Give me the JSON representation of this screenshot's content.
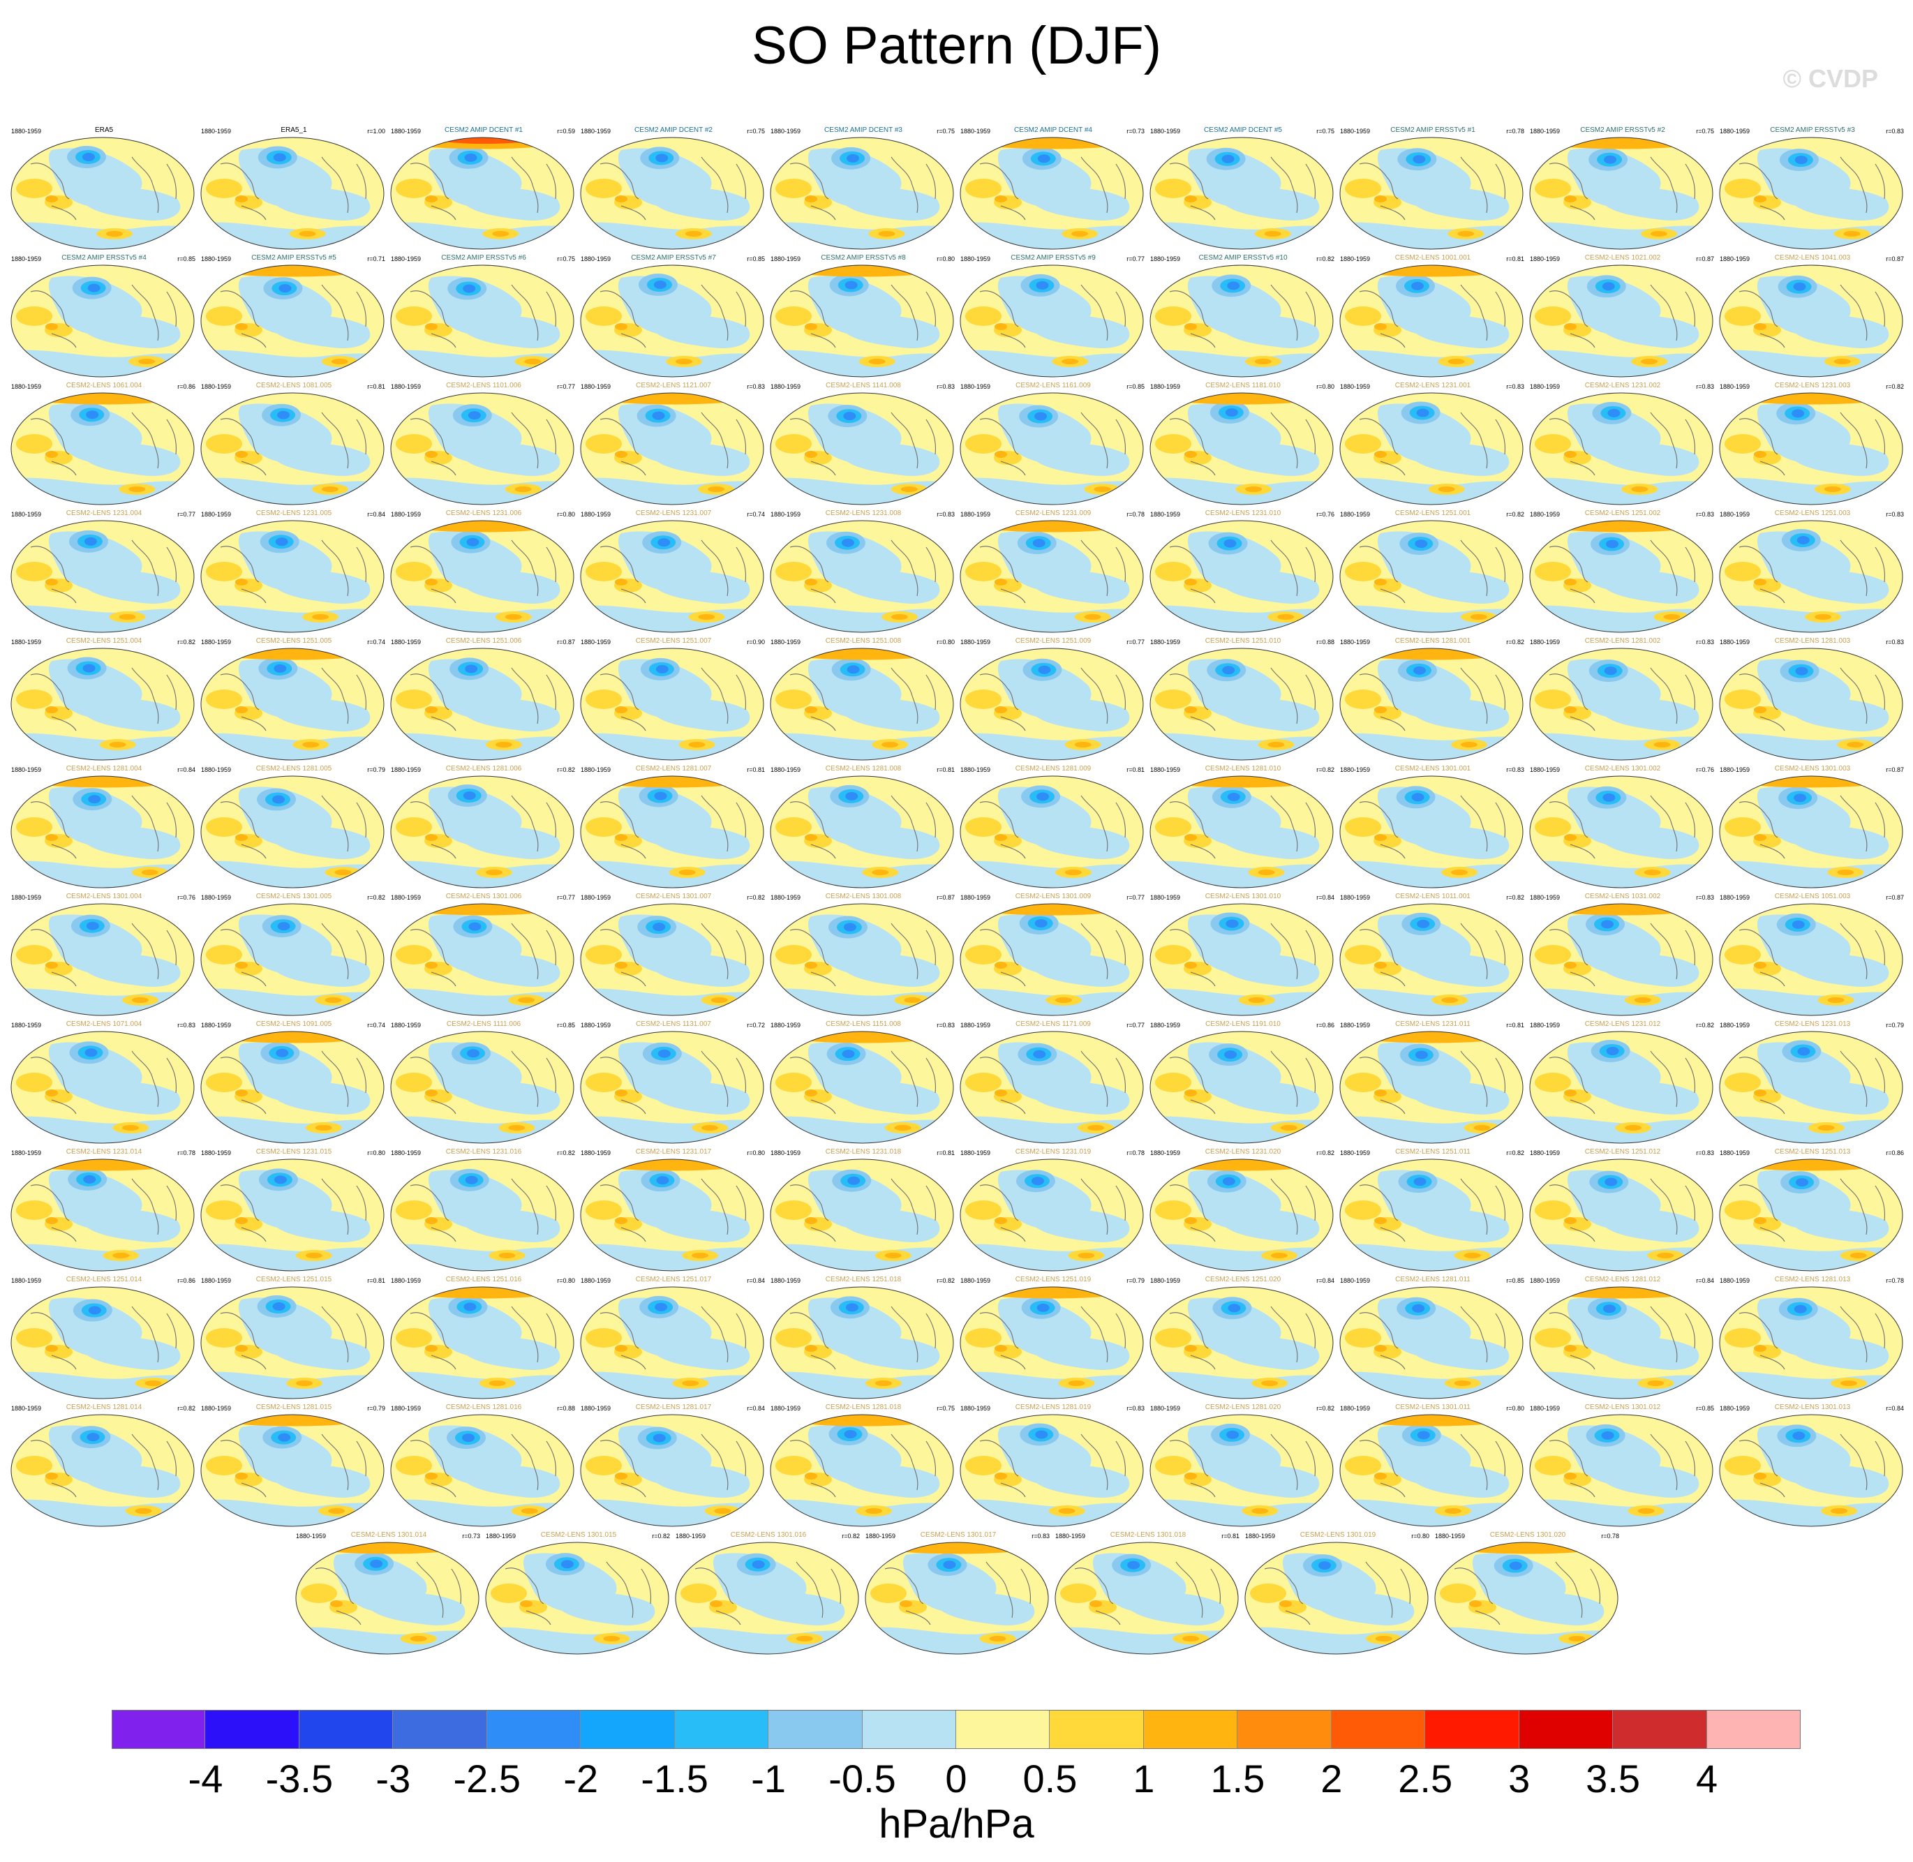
{
  "title": "SO Pattern (DJF)",
  "watermark": "© CVDP",
  "chart_data": {
    "type": "heatmap",
    "title": "SO Pattern (DJF)",
    "colorbar": {
      "levels": [
        "-4",
        "-3.5",
        "-3",
        "-2.5",
        "-2",
        "-1.5",
        "-1",
        "-0.5",
        "0",
        "0.5",
        "1",
        "1.5",
        "2",
        "2.5",
        "3",
        "3.5",
        "4"
      ],
      "colors": [
        "#8021ee",
        "#2c10fa",
        "#2246ee",
        "#3c6ce0",
        "#2f8df8",
        "#14a5fc",
        "#29bdf7",
        "#8ac9ef",
        "#b7e2f4",
        "#fef69a",
        "#ffd93a",
        "#ffb410",
        "#ff8c0c",
        "#ff5a06",
        "#ff1a00",
        "#df0000",
        "#cf2d2d",
        "#ffb4b4"
      ],
      "units": "hPa/hPa"
    },
    "panels": [
      {
        "name": "ERA5",
        "period": "1880-1959",
        "r": ""
      },
      {
        "name": "ERA5_1",
        "period": "1880-1959",
        "r": "r=1.00"
      },
      {
        "name": "CESM2 AMIP DCENT #1",
        "period": "1880-1959",
        "r": "r=0.59"
      },
      {
        "name": "CESM2 AMIP DCENT #2",
        "period": "1880-1959",
        "r": "r=0.75"
      },
      {
        "name": "CESM2 AMIP DCENT #3",
        "period": "1880-1959",
        "r": "r=0.75"
      },
      {
        "name": "CESM2 AMIP DCENT #4",
        "period": "1880-1959",
        "r": "r=0.73"
      },
      {
        "name": "CESM2 AMIP DCENT #5",
        "period": "1880-1959",
        "r": "r=0.75"
      },
      {
        "name": "CESM2 AMIP ERSSTv5 #1",
        "period": "1880-1959",
        "r": "r=0.78"
      },
      {
        "name": "CESM2 AMIP ERSSTv5 #2",
        "period": "1880-1959",
        "r": "r=0.75"
      },
      {
        "name": "CESM2 AMIP ERSSTv5 #3",
        "period": "1880-1959",
        "r": "r=0.83"
      },
      {
        "name": "CESM2 AMIP ERSSTv5 #4",
        "period": "1880-1959",
        "r": "r=0.85"
      },
      {
        "name": "CESM2 AMIP ERSSTv5 #5",
        "period": "1880-1959",
        "r": "r=0.71"
      },
      {
        "name": "CESM2 AMIP ERSSTv5 #6",
        "period": "1880-1959",
        "r": "r=0.75"
      },
      {
        "name": "CESM2 AMIP ERSSTv5 #7",
        "period": "1880-1959",
        "r": "r=0.85"
      },
      {
        "name": "CESM2 AMIP ERSSTv5 #8",
        "period": "1880-1959",
        "r": "r=0.80"
      },
      {
        "name": "CESM2 AMIP ERSSTv5 #9",
        "period": "1880-1959",
        "r": "r=0.77"
      },
      {
        "name": "CESM2 AMIP ERSSTv5 #10",
        "period": "1880-1959",
        "r": "r=0.82"
      },
      {
        "name": "CESM2-LENS 1001.001",
        "period": "1880-1959",
        "r": "r=0.81"
      },
      {
        "name": "CESM2-LENS 1021.002",
        "period": "1880-1959",
        "r": "r=0.87"
      },
      {
        "name": "CESM2-LENS 1041.003",
        "period": "1880-1959",
        "r": "r=0.87"
      },
      {
        "name": "CESM2-LENS 1061.004",
        "period": "1880-1959",
        "r": "r=0.86"
      },
      {
        "name": "CESM2-LENS 1081.005",
        "period": "1880-1959",
        "r": "r=0.81"
      },
      {
        "name": "CESM2-LENS 1101.006",
        "period": "1880-1959",
        "r": "r=0.77"
      },
      {
        "name": "CESM2-LENS 1121.007",
        "period": "1880-1959",
        "r": "r=0.83"
      },
      {
        "name": "CESM2-LENS 1141.008",
        "period": "1880-1959",
        "r": "r=0.83"
      },
      {
        "name": "CESM2-LENS 1161.009",
        "period": "1880-1959",
        "r": "r=0.85"
      },
      {
        "name": "CESM2-LENS 1181.010",
        "period": "1880-1959",
        "r": "r=0.80"
      },
      {
        "name": "CESM2-LENS 1231.001",
        "period": "1880-1959",
        "r": "r=0.83"
      },
      {
        "name": "CESM2-LENS 1231.002",
        "period": "1880-1959",
        "r": "r=0.83"
      },
      {
        "name": "CESM2-LENS 1231.003",
        "period": "1880-1959",
        "r": "r=0.82"
      },
      {
        "name": "CESM2-LENS 1231.004",
        "period": "1880-1959",
        "r": "r=0.77"
      },
      {
        "name": "CESM2-LENS 1231.005",
        "period": "1880-1959",
        "r": "r=0.84"
      },
      {
        "name": "CESM2-LENS 1231.006",
        "period": "1880-1959",
        "r": "r=0.80"
      },
      {
        "name": "CESM2-LENS 1231.007",
        "period": "1880-1959",
        "r": "r=0.74"
      },
      {
        "name": "CESM2-LENS 1231.008",
        "period": "1880-1959",
        "r": "r=0.83"
      },
      {
        "name": "CESM2-LENS 1231.009",
        "period": "1880-1959",
        "r": "r=0.78"
      },
      {
        "name": "CESM2-LENS 1231.010",
        "period": "1880-1959",
        "r": "r=0.76"
      },
      {
        "name": "CESM2-LENS 1251.001",
        "period": "1880-1959",
        "r": "r=0.82"
      },
      {
        "name": "CESM2-LENS 1251.002",
        "period": "1880-1959",
        "r": "r=0.83"
      },
      {
        "name": "CESM2-LENS 1251.003",
        "period": "1880-1959",
        "r": "r=0.83"
      },
      {
        "name": "CESM2-LENS 1251.004",
        "period": "1880-1959",
        "r": "r=0.82"
      },
      {
        "name": "CESM2-LENS 1251.005",
        "period": "1880-1959",
        "r": "r=0.74"
      },
      {
        "name": "CESM2-LENS 1251.006",
        "period": "1880-1959",
        "r": "r=0.87"
      },
      {
        "name": "CESM2-LENS 1251.007",
        "period": "1880-1959",
        "r": "r=0.90"
      },
      {
        "name": "CESM2-LENS 1251.008",
        "period": "1880-1959",
        "r": "r=0.80"
      },
      {
        "name": "CESM2-LENS 1251.009",
        "period": "1880-1959",
        "r": "r=0.77"
      },
      {
        "name": "CESM2-LENS 1251.010",
        "period": "1880-1959",
        "r": "r=0.88"
      },
      {
        "name": "CESM2-LENS 1281.001",
        "period": "1880-1959",
        "r": "r=0.82"
      },
      {
        "name": "CESM2-LENS 1281.002",
        "period": "1880-1959",
        "r": "r=0.83"
      },
      {
        "name": "CESM2-LENS 1281.003",
        "period": "1880-1959",
        "r": "r=0.83"
      },
      {
        "name": "CESM2-LENS 1281.004",
        "period": "1880-1959",
        "r": "r=0.84"
      },
      {
        "name": "CESM2-LENS 1281.005",
        "period": "1880-1959",
        "r": "r=0.79"
      },
      {
        "name": "CESM2-LENS 1281.006",
        "period": "1880-1959",
        "r": "r=0.82"
      },
      {
        "name": "CESM2-LENS 1281.007",
        "period": "1880-1959",
        "r": "r=0.81"
      },
      {
        "name": "CESM2-LENS 1281.008",
        "period": "1880-1959",
        "r": "r=0.81"
      },
      {
        "name": "CESM2-LENS 1281.009",
        "period": "1880-1959",
        "r": "r=0.81"
      },
      {
        "name": "CESM2-LENS 1281.010",
        "period": "1880-1959",
        "r": "r=0.82"
      },
      {
        "name": "CESM2-LENS 1301.001",
        "period": "1880-1959",
        "r": "r=0.83"
      },
      {
        "name": "CESM2-LENS 1301.002",
        "period": "1880-1959",
        "r": "r=0.76"
      },
      {
        "name": "CESM2-LENS 1301.003",
        "period": "1880-1959",
        "r": "r=0.87"
      },
      {
        "name": "CESM2-LENS 1301.004",
        "period": "1880-1959",
        "r": "r=0.76"
      },
      {
        "name": "CESM2-LENS 1301.005",
        "period": "1880-1959",
        "r": "r=0.82"
      },
      {
        "name": "CESM2-LENS 1301.006",
        "period": "1880-1959",
        "r": "r=0.77"
      },
      {
        "name": "CESM2-LENS 1301.007",
        "period": "1880-1959",
        "r": "r=0.82"
      },
      {
        "name": "CESM2-LENS 1301.008",
        "period": "1880-1959",
        "r": "r=0.87"
      },
      {
        "name": "CESM2-LENS 1301.009",
        "period": "1880-1959",
        "r": "r=0.77"
      },
      {
        "name": "CESM2-LENS 1301.010",
        "period": "1880-1959",
        "r": "r=0.84"
      },
      {
        "name": "CESM2-LENS 1011.001",
        "period": "1880-1959",
        "r": "r=0.82"
      },
      {
        "name": "CESM2-LENS 1031.002",
        "period": "1880-1959",
        "r": "r=0.83"
      },
      {
        "name": "CESM2-LENS 1051.003",
        "period": "1880-1959",
        "r": "r=0.87"
      },
      {
        "name": "CESM2-LENS 1071.004",
        "period": "1880-1959",
        "r": "r=0.83"
      },
      {
        "name": "CESM2-LENS 1091.005",
        "period": "1880-1959",
        "r": "r=0.74"
      },
      {
        "name": "CESM2-LENS 1111.006",
        "period": "1880-1959",
        "r": "r=0.85"
      },
      {
        "name": "CESM2-LENS 1131.007",
        "period": "1880-1959",
        "r": "r=0.72"
      },
      {
        "name": "CESM2-LENS 1151.008",
        "period": "1880-1959",
        "r": "r=0.83"
      },
      {
        "name": "CESM2-LENS 1171.009",
        "period": "1880-1959",
        "r": "r=0.77"
      },
      {
        "name": "CESM2-LENS 1191.010",
        "period": "1880-1959",
        "r": "r=0.86"
      },
      {
        "name": "CESM2-LENS 1231.011",
        "period": "1880-1959",
        "r": "r=0.81"
      },
      {
        "name": "CESM2-LENS 1231.012",
        "period": "1880-1959",
        "r": "r=0.82"
      },
      {
        "name": "CESM2-LENS 1231.013",
        "period": "1880-1959",
        "r": "r=0.79"
      },
      {
        "name": "CESM2-LENS 1231.014",
        "period": "1880-1959",
        "r": "r=0.78"
      },
      {
        "name": "CESM2-LENS 1231.015",
        "period": "1880-1959",
        "r": "r=0.80"
      },
      {
        "name": "CESM2-LENS 1231.016",
        "period": "1880-1959",
        "r": "r=0.82"
      },
      {
        "name": "CESM2-LENS 1231.017",
        "period": "1880-1959",
        "r": "r=0.80"
      },
      {
        "name": "CESM2-LENS 1231.018",
        "period": "1880-1959",
        "r": "r=0.81"
      },
      {
        "name": "CESM2-LENS 1231.019",
        "period": "1880-1959",
        "r": "r=0.78"
      },
      {
        "name": "CESM2-LENS 1231.020",
        "period": "1880-1959",
        "r": "r=0.82"
      },
      {
        "name": "CESM2-LENS 1251.011",
        "period": "1880-1959",
        "r": "r=0.82"
      },
      {
        "name": "CESM2-LENS 1251.012",
        "period": "1880-1959",
        "r": "r=0.83"
      },
      {
        "name": "CESM2-LENS 1251.013",
        "period": "1880-1959",
        "r": "r=0.86"
      },
      {
        "name": "CESM2-LENS 1251.014",
        "period": "1880-1959",
        "r": "r=0.86"
      },
      {
        "name": "CESM2-LENS 1251.015",
        "period": "1880-1959",
        "r": "r=0.81"
      },
      {
        "name": "CESM2-LENS 1251.016",
        "period": "1880-1959",
        "r": "r=0.80"
      },
      {
        "name": "CESM2-LENS 1251.017",
        "period": "1880-1959",
        "r": "r=0.84"
      },
      {
        "name": "CESM2-LENS 1251.018",
        "period": "1880-1959",
        "r": "r=0.82"
      },
      {
        "name": "CESM2-LENS 1251.019",
        "period": "1880-1959",
        "r": "r=0.79"
      },
      {
        "name": "CESM2-LENS 1251.020",
        "period": "1880-1959",
        "r": "r=0.84"
      },
      {
        "name": "CESM2-LENS 1281.011",
        "period": "1880-1959",
        "r": "r=0.85"
      },
      {
        "name": "CESM2-LENS 1281.012",
        "period": "1880-1959",
        "r": "r=0.84"
      },
      {
        "name": "CESM2-LENS 1281.013",
        "period": "1880-1959",
        "r": "r=0.78"
      },
      {
        "name": "CESM2-LENS 1281.014",
        "period": "1880-1959",
        "r": "r=0.82"
      },
      {
        "name": "CESM2-LENS 1281.015",
        "period": "1880-1959",
        "r": "r=0.79"
      },
      {
        "name": "CESM2-LENS 1281.016",
        "period": "1880-1959",
        "r": "r=0.88"
      },
      {
        "name": "CESM2-LENS 1281.017",
        "period": "1880-1959",
        "r": "r=0.84"
      },
      {
        "name": "CESM2-LENS 1281.018",
        "period": "1880-1959",
        "r": "r=0.75"
      },
      {
        "name": "CESM2-LENS 1281.019",
        "period": "1880-1959",
        "r": "r=0.83"
      },
      {
        "name": "CESM2-LENS 1281.020",
        "period": "1880-1959",
        "r": "r=0.82"
      },
      {
        "name": "CESM2-LENS 1301.011",
        "period": "1880-1959",
        "r": "r=0.80"
      },
      {
        "name": "CESM2-LENS 1301.012",
        "period": "1880-1959",
        "r": "r=0.85"
      },
      {
        "name": "CESM2-LENS 1301.013",
        "period": "1880-1959",
        "r": "r=0.84"
      },
      {
        "name": "CESM2-LENS 1301.014",
        "period": "1880-1959",
        "r": "r=0.73"
      },
      {
        "name": "CESM2-LENS 1301.015",
        "period": "1880-1959",
        "r": "r=0.82"
      },
      {
        "name": "CESM2-LENS 1301.016",
        "period": "1880-1959",
        "r": "r=0.82"
      },
      {
        "name": "CESM2-LENS 1301.017",
        "period": "1880-1959",
        "r": "r=0.83"
      },
      {
        "name": "CESM2-LENS 1301.018",
        "period": "1880-1959",
        "r": "r=0.81"
      },
      {
        "name": "CESM2-LENS 1301.019",
        "period": "1880-1959",
        "r": "r=0.80"
      },
      {
        "name": "CESM2-LENS 1301.020",
        "period": "1880-1959",
        "r": "r=0.78"
      }
    ]
  }
}
